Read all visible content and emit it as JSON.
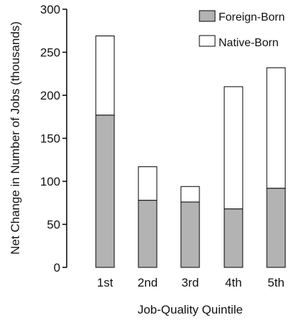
{
  "chart_data": {
    "type": "bar",
    "stacked": true,
    "categories": [
      "1st",
      "2nd",
      "3rd",
      "4th",
      "5th"
    ],
    "series": [
      {
        "name": "Foreign-Born",
        "values": [
          177,
          78,
          76,
          68,
          92
        ],
        "color": "#b3b3b3"
      },
      {
        "name": "Native-Born",
        "values": [
          92,
          39,
          18,
          142,
          140
        ],
        "color": "#ffffff"
      }
    ],
    "xlabel": "Job-Quality Quintile",
    "ylabel": "Net Change in Number of Jobs (thousands)",
    "ylim": [
      0,
      300
    ],
    "yticks": [
      0,
      50,
      100,
      150,
      200,
      250,
      300
    ],
    "grid": false,
    "legend_position": "top-right",
    "stroke_color": "#000000"
  }
}
